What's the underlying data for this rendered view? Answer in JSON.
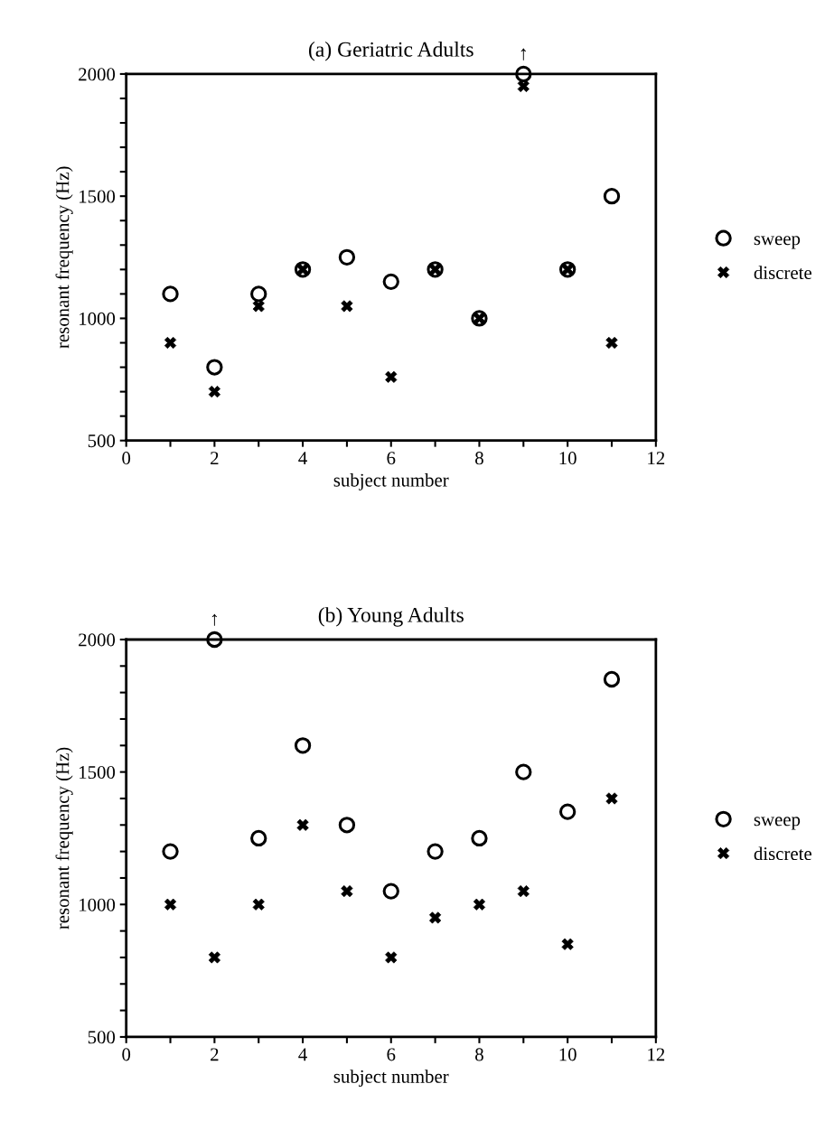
{
  "chart_data": [
    {
      "type": "scatter",
      "title": "(a) Geriatric Adults",
      "xlabel": "subject number",
      "ylabel": "resonant frequency (Hz)",
      "x": [
        1,
        2,
        3,
        4,
        5,
        6,
        7,
        8,
        9,
        10,
        11
      ],
      "series": [
        {
          "name": "sweep",
          "color": "#000000",
          "marker": "circle",
          "values": [
            1100,
            800,
            1100,
            1200,
            1250,
            1150,
            1200,
            1000,
            2000,
            1200,
            1500
          ]
        },
        {
          "name": "discrete",
          "color": "#000000",
          "marker": "cross",
          "values": [
            900,
            700,
            1050,
            1200,
            1050,
            760,
            1200,
            1000,
            1950,
            1200,
            900
          ]
        }
      ],
      "xlim": [
        0,
        12
      ],
      "ylim": [
        500,
        2000
      ],
      "xticks": [
        0,
        {
          "value": 1,
          "label": null
        },
        2,
        {
          "value": 3,
          "label": null
        },
        4,
        {
          "value": 5,
          "label": null
        },
        6,
        {
          "value": 7,
          "label": null
        },
        8,
        {
          "value": 9,
          "label": null
        },
        10,
        {
          "value": 11,
          "label": null
        },
        12
      ],
      "yticks": [
        500,
        {
          "value": 600,
          "label": null
        },
        {
          "value": 700,
          "label": null
        },
        {
          "value": 800,
          "label": null
        },
        {
          "value": 900,
          "label": null
        },
        1000,
        {
          "value": 1100,
          "label": null
        },
        {
          "value": 1200,
          "label": null
        },
        {
          "value": 1300,
          "label": null
        },
        {
          "value": 1400,
          "label": null
        },
        1500,
        {
          "value": 1600,
          "label": null
        },
        {
          "value": 1700,
          "label": null
        },
        {
          "value": 1800,
          "label": null
        },
        {
          "value": 1900,
          "label": null
        },
        2000
      ],
      "annotations": [
        {
          "text": "↑",
          "x": 9,
          "y": 2000
        }
      ],
      "legend": "right",
      "grid": false
    },
    {
      "type": "scatter",
      "title": "(b) Young Adults",
      "xlabel": "subject number",
      "ylabel": "resonant frequency (Hz)",
      "x": [
        1,
        2,
        3,
        4,
        5,
        6,
        7,
        8,
        9,
        10,
        11
      ],
      "series": [
        {
          "name": "sweep",
          "color": "#000000",
          "marker": "circle",
          "values": [
            1200,
            2000,
            1250,
            1600,
            1300,
            1050,
            1200,
            1250,
            1500,
            1350,
            1850
          ]
        },
        {
          "name": "discrete",
          "color": "#000000",
          "marker": "cross",
          "values": [
            1000,
            800,
            1000,
            1300,
            1050,
            800,
            950,
            1000,
            1050,
            850,
            1400
          ]
        }
      ],
      "xlim": [
        0,
        12
      ],
      "ylim": [
        500,
        2000
      ],
      "xticks": [
        0,
        {
          "value": 1,
          "label": null
        },
        2,
        {
          "value": 3,
          "label": null
        },
        4,
        {
          "value": 5,
          "label": null
        },
        6,
        {
          "value": 7,
          "label": null
        },
        8,
        {
          "value": 9,
          "label": null
        },
        10,
        {
          "value": 11,
          "label": null
        },
        12
      ],
      "yticks": [
        500,
        {
          "value": 600,
          "label": null
        },
        {
          "value": 700,
          "label": null
        },
        {
          "value": 800,
          "label": null
        },
        {
          "value": 900,
          "label": null
        },
        1000,
        {
          "value": 1100,
          "label": null
        },
        {
          "value": 1200,
          "label": null
        },
        {
          "value": 1300,
          "label": null
        },
        {
          "value": 1400,
          "label": null
        },
        1500,
        {
          "value": 1600,
          "label": null
        },
        {
          "value": 1700,
          "label": null
        },
        {
          "value": 1800,
          "label": null
        },
        {
          "value": 1900,
          "label": null
        },
        2000
      ],
      "annotations": [
        {
          "text": "↑",
          "x": 2,
          "y": 2000
        }
      ],
      "legend": "right",
      "grid": false
    }
  ]
}
